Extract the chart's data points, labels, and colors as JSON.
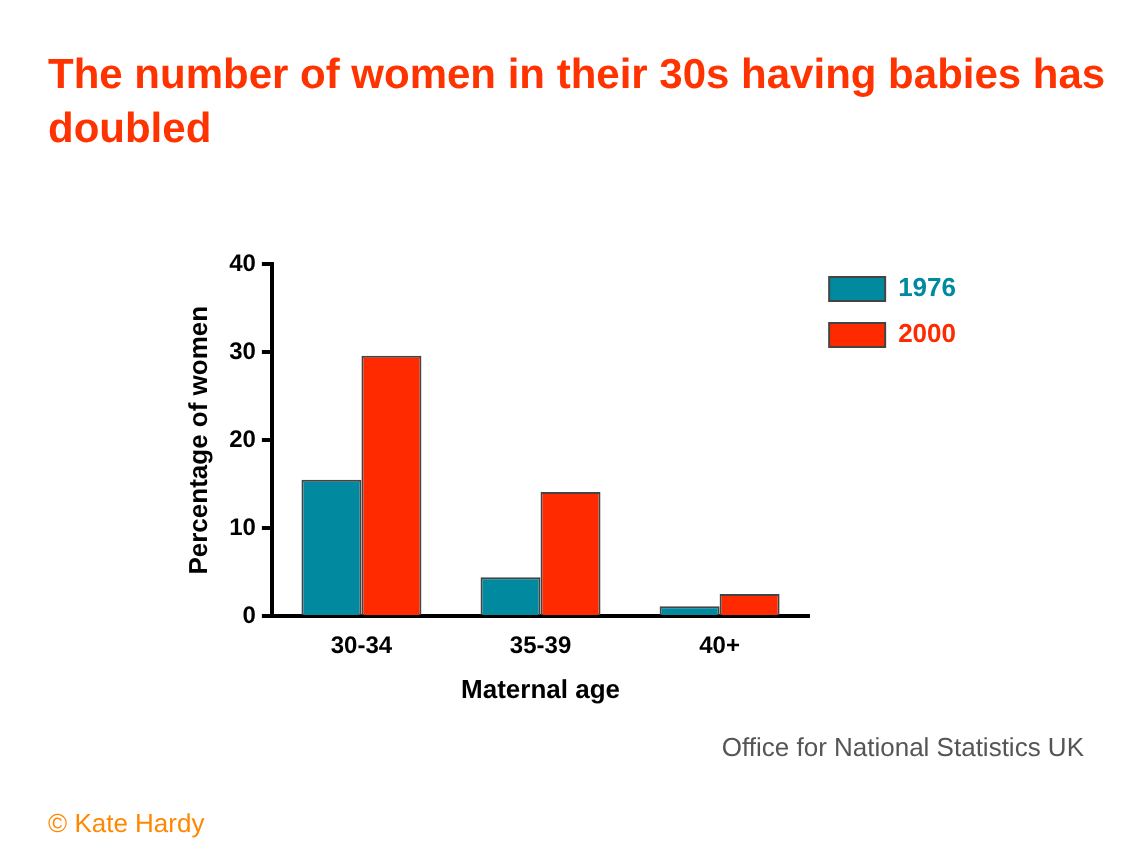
{
  "chart_data": {
    "type": "bar",
    "title": "The number of women in their 30s having babies has doubled",
    "xlabel": "Maternal age",
    "ylabel": "Percentage of women",
    "categories": [
      "30-34",
      "35-39",
      "40+"
    ],
    "series": [
      {
        "name": "1976",
        "color": "#00899f",
        "values": [
          15.5,
          4.4,
          1.1
        ]
      },
      {
        "name": "2000",
        "color": "#ff2a00",
        "values": [
          29.6,
          14.1,
          2.5
        ]
      }
    ],
    "ylim": [
      0,
      40
    ],
    "yticks": [
      0,
      10,
      20,
      30,
      40
    ],
    "grid": false,
    "legend": "top right",
    "annotations": [
      "Office for National Statistics UK",
      "© Kate Hardy"
    ]
  }
}
